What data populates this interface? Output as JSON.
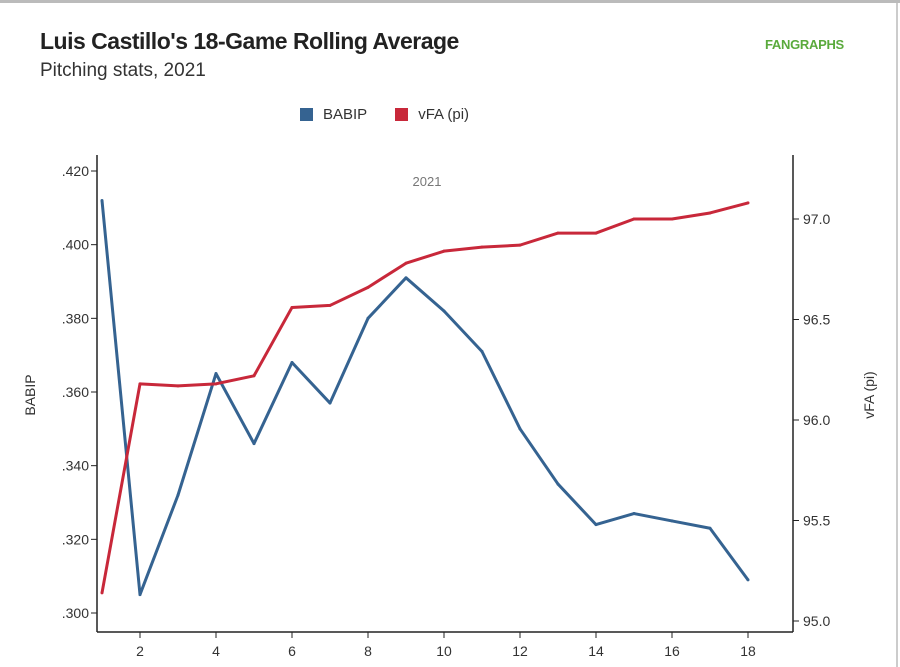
{
  "title": "Luis Castillo's 18-Game Rolling Average",
  "subtitle": "Pitching stats, 2021",
  "logo": "FANGRAPHS",
  "chart_data": {
    "type": "line",
    "annotation": "2021",
    "x": [
      1,
      2,
      3,
      4,
      5,
      6,
      7,
      8,
      9,
      10,
      11,
      12,
      13,
      14,
      15,
      16,
      17,
      18
    ],
    "xticks": [
      "2",
      "4",
      "6",
      "8",
      "10",
      "12",
      "14",
      "16",
      "18"
    ],
    "xlim": [
      1,
      18.3
    ],
    "series": [
      {
        "name": "BABIP",
        "axis": "left",
        "color": "#356391",
        "values": [
          0.412,
          0.305,
          0.332,
          0.365,
          0.346,
          0.368,
          0.357,
          0.38,
          0.391,
          0.382,
          0.371,
          0.35,
          0.335,
          0.324,
          0.327,
          0.325,
          0.323,
          0.309
        ]
      },
      {
        "name": "vFA (pi)",
        "axis": "right",
        "color": "#c8283a",
        "values": [
          95.14,
          96.18,
          96.17,
          96.18,
          96.22,
          96.56,
          96.57,
          96.66,
          96.78,
          96.84,
          96.86,
          96.87,
          96.93,
          96.93,
          97.0,
          97.0,
          97.03,
          97.08
        ]
      }
    ],
    "ylabel": "BABIP",
    "ylim": [
      0.295,
      0.4245
    ],
    "yticks": [
      ".300",
      ".320",
      ".340",
      ".360",
      ".380",
      ".400",
      ".420"
    ],
    "y2label": "vFA (pi)",
    "y2lim": [
      94.96,
      97.33
    ],
    "y2ticks": [
      "95.0",
      "95.5",
      "96.0",
      "96.5",
      "97.0"
    ],
    "legend_position": "top-center"
  }
}
